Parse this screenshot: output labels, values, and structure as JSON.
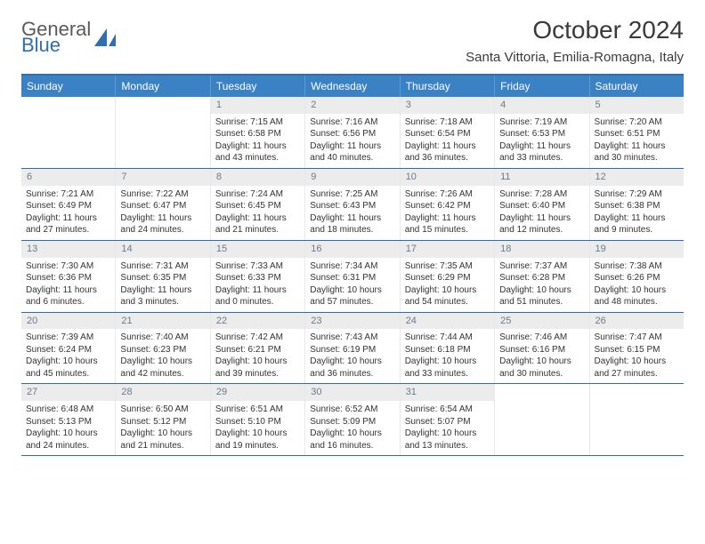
{
  "logo": {
    "part1": "General",
    "part2": "Blue"
  },
  "title": "October 2024",
  "location": "Santa Vittoria, Emilia-Romagna, Italy",
  "weekdays": [
    "Sunday",
    "Monday",
    "Tuesday",
    "Wednesday",
    "Thursday",
    "Friday",
    "Saturday"
  ],
  "colors": {
    "header_bg": "#3b82c4",
    "header_border": "#2f6fb0",
    "daynum_bg": "#ececec",
    "daynum_color": "#6a7a8a",
    "text": "#333333",
    "logo_gray": "#5a5a5a",
    "logo_blue": "#2f6fb0"
  },
  "weeks": [
    [
      {
        "n": "",
        "sunrise": "",
        "sunset": "",
        "daylight": ""
      },
      {
        "n": "",
        "sunrise": "",
        "sunset": "",
        "daylight": ""
      },
      {
        "n": "1",
        "sunrise": "Sunrise: 7:15 AM",
        "sunset": "Sunset: 6:58 PM",
        "daylight": "Daylight: 11 hours and 43 minutes."
      },
      {
        "n": "2",
        "sunrise": "Sunrise: 7:16 AM",
        "sunset": "Sunset: 6:56 PM",
        "daylight": "Daylight: 11 hours and 40 minutes."
      },
      {
        "n": "3",
        "sunrise": "Sunrise: 7:18 AM",
        "sunset": "Sunset: 6:54 PM",
        "daylight": "Daylight: 11 hours and 36 minutes."
      },
      {
        "n": "4",
        "sunrise": "Sunrise: 7:19 AM",
        "sunset": "Sunset: 6:53 PM",
        "daylight": "Daylight: 11 hours and 33 minutes."
      },
      {
        "n": "5",
        "sunrise": "Sunrise: 7:20 AM",
        "sunset": "Sunset: 6:51 PM",
        "daylight": "Daylight: 11 hours and 30 minutes."
      }
    ],
    [
      {
        "n": "6",
        "sunrise": "Sunrise: 7:21 AM",
        "sunset": "Sunset: 6:49 PM",
        "daylight": "Daylight: 11 hours and 27 minutes."
      },
      {
        "n": "7",
        "sunrise": "Sunrise: 7:22 AM",
        "sunset": "Sunset: 6:47 PM",
        "daylight": "Daylight: 11 hours and 24 minutes."
      },
      {
        "n": "8",
        "sunrise": "Sunrise: 7:24 AM",
        "sunset": "Sunset: 6:45 PM",
        "daylight": "Daylight: 11 hours and 21 minutes."
      },
      {
        "n": "9",
        "sunrise": "Sunrise: 7:25 AM",
        "sunset": "Sunset: 6:43 PM",
        "daylight": "Daylight: 11 hours and 18 minutes."
      },
      {
        "n": "10",
        "sunrise": "Sunrise: 7:26 AM",
        "sunset": "Sunset: 6:42 PM",
        "daylight": "Daylight: 11 hours and 15 minutes."
      },
      {
        "n": "11",
        "sunrise": "Sunrise: 7:28 AM",
        "sunset": "Sunset: 6:40 PM",
        "daylight": "Daylight: 11 hours and 12 minutes."
      },
      {
        "n": "12",
        "sunrise": "Sunrise: 7:29 AM",
        "sunset": "Sunset: 6:38 PM",
        "daylight": "Daylight: 11 hours and 9 minutes."
      }
    ],
    [
      {
        "n": "13",
        "sunrise": "Sunrise: 7:30 AM",
        "sunset": "Sunset: 6:36 PM",
        "daylight": "Daylight: 11 hours and 6 minutes."
      },
      {
        "n": "14",
        "sunrise": "Sunrise: 7:31 AM",
        "sunset": "Sunset: 6:35 PM",
        "daylight": "Daylight: 11 hours and 3 minutes."
      },
      {
        "n": "15",
        "sunrise": "Sunrise: 7:33 AM",
        "sunset": "Sunset: 6:33 PM",
        "daylight": "Daylight: 11 hours and 0 minutes."
      },
      {
        "n": "16",
        "sunrise": "Sunrise: 7:34 AM",
        "sunset": "Sunset: 6:31 PM",
        "daylight": "Daylight: 10 hours and 57 minutes."
      },
      {
        "n": "17",
        "sunrise": "Sunrise: 7:35 AM",
        "sunset": "Sunset: 6:29 PM",
        "daylight": "Daylight: 10 hours and 54 minutes."
      },
      {
        "n": "18",
        "sunrise": "Sunrise: 7:37 AM",
        "sunset": "Sunset: 6:28 PM",
        "daylight": "Daylight: 10 hours and 51 minutes."
      },
      {
        "n": "19",
        "sunrise": "Sunrise: 7:38 AM",
        "sunset": "Sunset: 6:26 PM",
        "daylight": "Daylight: 10 hours and 48 minutes."
      }
    ],
    [
      {
        "n": "20",
        "sunrise": "Sunrise: 7:39 AM",
        "sunset": "Sunset: 6:24 PM",
        "daylight": "Daylight: 10 hours and 45 minutes."
      },
      {
        "n": "21",
        "sunrise": "Sunrise: 7:40 AM",
        "sunset": "Sunset: 6:23 PM",
        "daylight": "Daylight: 10 hours and 42 minutes."
      },
      {
        "n": "22",
        "sunrise": "Sunrise: 7:42 AM",
        "sunset": "Sunset: 6:21 PM",
        "daylight": "Daylight: 10 hours and 39 minutes."
      },
      {
        "n": "23",
        "sunrise": "Sunrise: 7:43 AM",
        "sunset": "Sunset: 6:19 PM",
        "daylight": "Daylight: 10 hours and 36 minutes."
      },
      {
        "n": "24",
        "sunrise": "Sunrise: 7:44 AM",
        "sunset": "Sunset: 6:18 PM",
        "daylight": "Daylight: 10 hours and 33 minutes."
      },
      {
        "n": "25",
        "sunrise": "Sunrise: 7:46 AM",
        "sunset": "Sunset: 6:16 PM",
        "daylight": "Daylight: 10 hours and 30 minutes."
      },
      {
        "n": "26",
        "sunrise": "Sunrise: 7:47 AM",
        "sunset": "Sunset: 6:15 PM",
        "daylight": "Daylight: 10 hours and 27 minutes."
      }
    ],
    [
      {
        "n": "27",
        "sunrise": "Sunrise: 6:48 AM",
        "sunset": "Sunset: 5:13 PM",
        "daylight": "Daylight: 10 hours and 24 minutes."
      },
      {
        "n": "28",
        "sunrise": "Sunrise: 6:50 AM",
        "sunset": "Sunset: 5:12 PM",
        "daylight": "Daylight: 10 hours and 21 minutes."
      },
      {
        "n": "29",
        "sunrise": "Sunrise: 6:51 AM",
        "sunset": "Sunset: 5:10 PM",
        "daylight": "Daylight: 10 hours and 19 minutes."
      },
      {
        "n": "30",
        "sunrise": "Sunrise: 6:52 AM",
        "sunset": "Sunset: 5:09 PM",
        "daylight": "Daylight: 10 hours and 16 minutes."
      },
      {
        "n": "31",
        "sunrise": "Sunrise: 6:54 AM",
        "sunset": "Sunset: 5:07 PM",
        "daylight": "Daylight: 10 hours and 13 minutes."
      },
      {
        "n": "",
        "sunrise": "",
        "sunset": "",
        "daylight": ""
      },
      {
        "n": "",
        "sunrise": "",
        "sunset": "",
        "daylight": ""
      }
    ]
  ]
}
